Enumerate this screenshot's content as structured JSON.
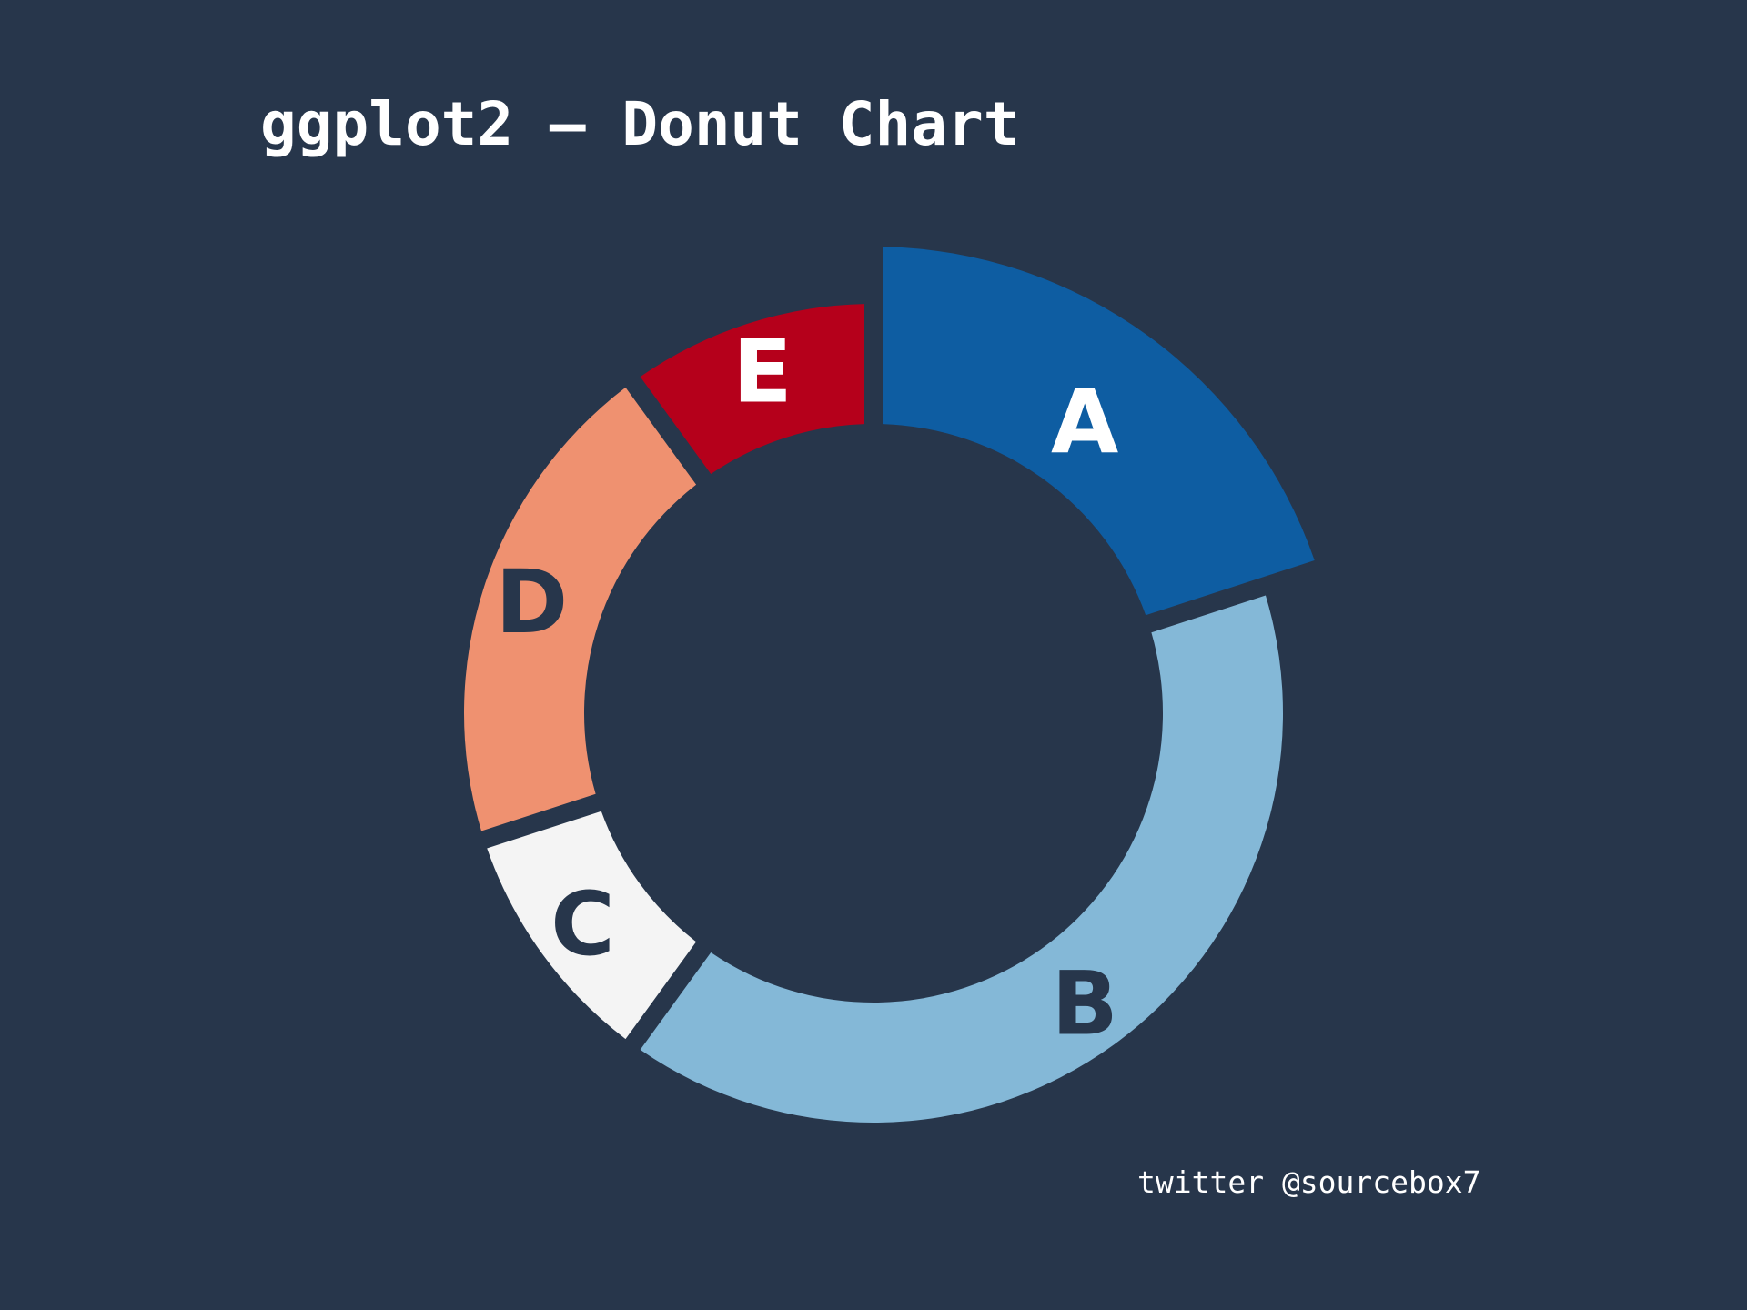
{
  "title": "ggplot2 – Donut Chart",
  "caption": "twitter @sourcebox7",
  "colors": {
    "background": "#27364b",
    "title": "#ffffff",
    "label_on_dark_fill": "#ffffff",
    "label_on_light_fill": "#27364b"
  },
  "chart_data": {
    "type": "pie",
    "subtype": "donut",
    "legend": "none",
    "categories": [
      "A",
      "B",
      "C",
      "D",
      "E"
    ],
    "values": [
      20,
      40,
      10,
      20,
      10
    ],
    "colors": [
      "#0e5da2",
      "#84b8d7",
      "#f4f4f4",
      "#ef9170",
      "#b5001b"
    ],
    "label_colors": [
      "#ffffff",
      "#27364b",
      "#27364b",
      "#27364b",
      "#ffffff"
    ],
    "direction": "clockwise",
    "start": "top"
  }
}
